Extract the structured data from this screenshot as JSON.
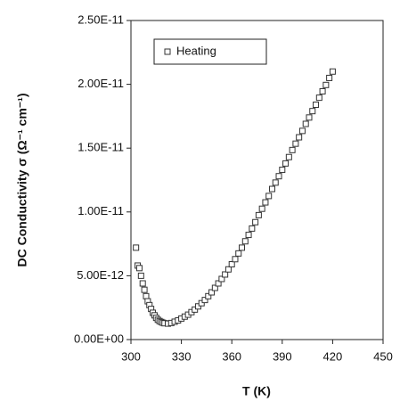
{
  "chart_data": {
    "type": "scatter",
    "x_label": "T (K)",
    "y_label": "DC Conductivity  σ (Ω⁻¹ cm⁻¹)",
    "legend_position": "upper left",
    "grid": false,
    "xlim": [
      300,
      450
    ],
    "xticks": [
      300,
      330,
      360,
      390,
      420,
      450
    ],
    "ylim": [
      0,
      2.5e-11
    ],
    "yticks": [
      {
        "value": 0,
        "label": "0.00E+00"
      },
      {
        "value": 5e-12,
        "label": "5.00E-12"
      },
      {
        "value": 1e-11,
        "label": "1.00E-11"
      },
      {
        "value": 1.5e-11,
        "label": "1.50E-11"
      },
      {
        "value": 2e-11,
        "label": "2.00E-11"
      },
      {
        "value": 2.5e-11,
        "label": "2.50E-11"
      }
    ],
    "series": [
      {
        "name": "Heating",
        "color": "#333333",
        "marker": "square",
        "x": [
          303,
          304,
          305,
          306,
          307,
          308,
          309,
          310,
          311,
          312,
          313,
          314,
          315,
          316,
          317,
          318,
          319,
          320,
          322,
          324,
          326,
          328,
          330,
          332,
          334,
          336,
          338,
          340,
          342,
          344,
          346,
          348,
          350,
          352,
          354,
          356,
          358,
          360,
          362,
          364,
          366,
          368,
          370,
          372,
          374,
          376,
          378,
          380,
          382,
          384,
          386,
          388,
          390,
          392,
          394,
          396,
          398,
          400,
          402,
          404,
          406,
          408,
          410,
          412,
          414,
          416,
          418,
          420
        ],
        "values": [
          7.2e-12,
          5.8e-12,
          5.6e-12,
          5e-12,
          4.4e-12,
          3.9e-12,
          3.4e-12,
          3e-12,
          2.7e-12,
          2.4e-12,
          2.1e-12,
          1.9e-12,
          1.7e-12,
          1.55e-12,
          1.45e-12,
          1.38e-12,
          1.32e-12,
          1.28e-12,
          1.25e-12,
          1.3e-12,
          1.4e-12,
          1.5e-12,
          1.65e-12,
          1.8e-12,
          1.95e-12,
          2.15e-12,
          2.35e-12,
          2.6e-12,
          2.85e-12,
          3.1e-12,
          3.4e-12,
          3.7e-12,
          4.05e-12,
          4.4e-12,
          4.75e-12,
          5.1e-12,
          5.5e-12,
          5.9e-12,
          6.3e-12,
          6.75e-12,
          7.2e-12,
          7.7e-12,
          8.2e-12,
          8.7e-12,
          9.2e-12,
          9.75e-12,
          1.025e-11,
          1.075e-11,
          1.125e-11,
          1.18e-11,
          1.23e-11,
          1.28e-11,
          1.33e-11,
          1.38e-11,
          1.43e-11,
          1.485e-11,
          1.535e-11,
          1.585e-11,
          1.635e-11,
          1.69e-11,
          1.74e-11,
          1.79e-11,
          1.84e-11,
          1.895e-11,
          1.945e-11,
          1.995e-11,
          2.05e-11,
          2.1e-11
        ]
      }
    ]
  }
}
